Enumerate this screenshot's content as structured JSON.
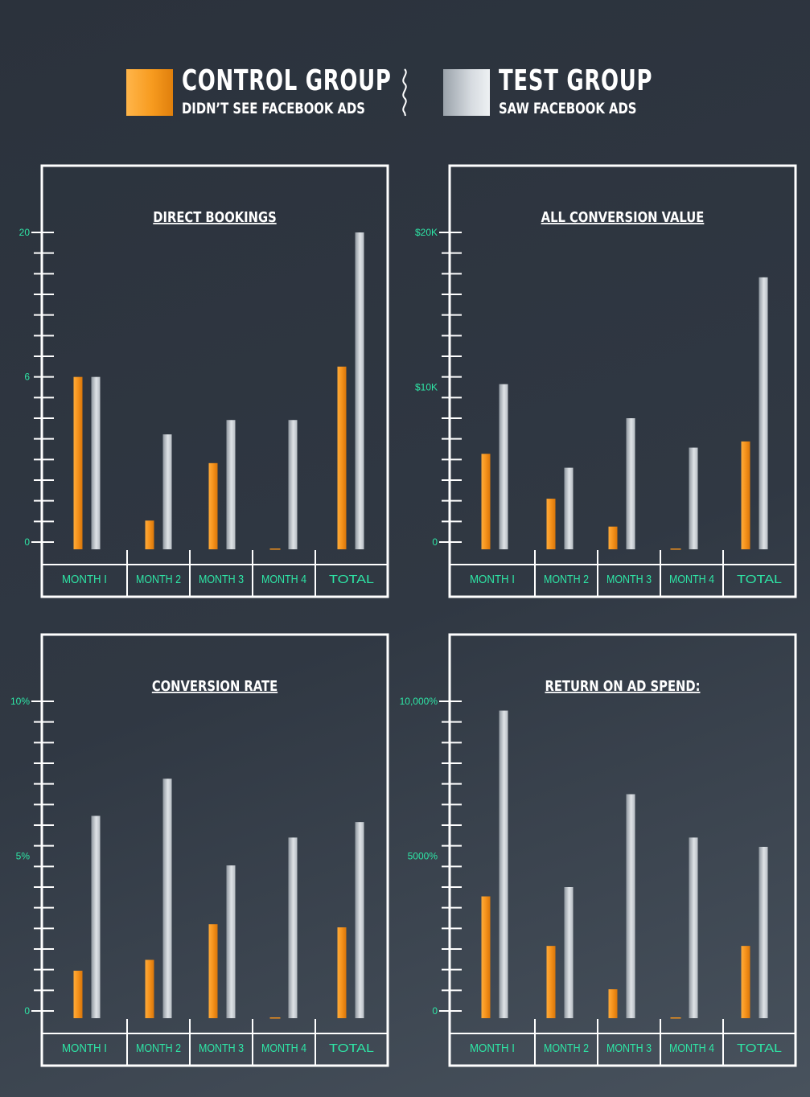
{
  "colors": {
    "control": "#f5921b",
    "test": "#c9ced3",
    "frame": "#ffffff",
    "label_accent": "#2ee6a6"
  },
  "legend": {
    "control_title": "CONTROL GROUP",
    "control_sub": "DIDN’T SEE FACEBOOK ADS",
    "test_title": "TEST GROUP",
    "test_sub": "SAW FACEBOOK ADS"
  },
  "chart_data": [
    {
      "type": "bar",
      "title": "DIRECT BOOKINGS",
      "categories": [
        "MONTH I",
        "MONTH 2",
        "MONTH 3",
        "MONTH 4",
        "TOTAL"
      ],
      "y_tick_labels": [
        {
          "value": 0,
          "label": "0"
        },
        {
          "value": 6,
          "label": "6"
        },
        {
          "value": 20,
          "label": "20"
        }
      ],
      "ylim": [
        0,
        20
      ],
      "series": [
        {
          "name": "CONTROL GROUP",
          "values": [
            6,
            1,
            3,
            0,
            7
          ]
        },
        {
          "name": "TEST GROUP",
          "values": [
            6,
            4,
            4.5,
            4.5,
            20
          ]
        }
      ]
    },
    {
      "type": "bar",
      "title": "ALL CONVERSION VALUE",
      "categories": [
        "MONTH I",
        "MONTH 2",
        "MONTH 3",
        "MONTH 4",
        "TOTAL"
      ],
      "y_tick_labels": [
        {
          "value": 0,
          "label": "0"
        },
        {
          "value": 10000,
          "label": "$10K"
        },
        {
          "value": 20000,
          "label": "$20K"
        }
      ],
      "ylim": [
        0,
        20000
      ],
      "series": [
        {
          "name": "CONTROL GROUP",
          "values": [
            5700,
            2800,
            1000,
            0,
            6500
          ]
        },
        {
          "name": "TEST GROUP",
          "values": [
            10200,
            4800,
            8000,
            6100,
            17100
          ]
        }
      ]
    },
    {
      "type": "bar",
      "title": "CONVERSION RATE",
      "categories": [
        "MONTH I",
        "MONTH 2",
        "MONTH 3",
        "MONTH 4",
        "TOTAL"
      ],
      "y_tick_labels": [
        {
          "value": 0,
          "label": "0"
        },
        {
          "value": 5,
          "label": "5%"
        },
        {
          "value": 10,
          "label": "10%"
        }
      ],
      "ylim": [
        0,
        10
      ],
      "series": [
        {
          "name": "CONTROL GROUP",
          "values": [
            1.3,
            1.65,
            2.8,
            0,
            2.7
          ]
        },
        {
          "name": "TEST GROUP",
          "values": [
            6.3,
            7.5,
            4.7,
            5.6,
            6.1
          ]
        }
      ]
    },
    {
      "type": "bar",
      "title": "RETURN ON AD SPEND:",
      "categories": [
        "MONTH I",
        "MONTH 2",
        "MONTH 3",
        "MONTH 4",
        "TOTAL"
      ],
      "y_tick_labels": [
        {
          "value": 0,
          "label": "0"
        },
        {
          "value": 5000,
          "label": "5000%"
        },
        {
          "value": 10000,
          "label": "10,000%"
        }
      ],
      "ylim": [
        0,
        10000
      ],
      "series": [
        {
          "name": "CONTROL GROUP",
          "values": [
            3700,
            2100,
            700,
            0,
            2100
          ]
        },
        {
          "name": "TEST GROUP",
          "values": [
            9700,
            4000,
            7000,
            5600,
            5300
          ]
        }
      ]
    }
  ]
}
